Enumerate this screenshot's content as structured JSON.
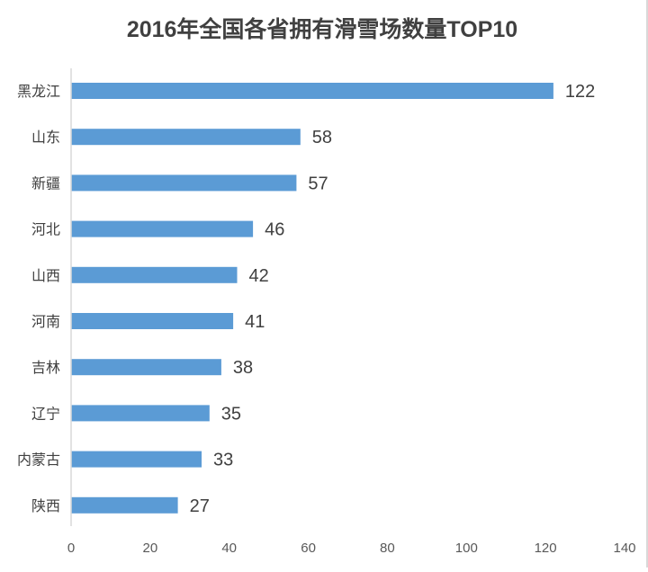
{
  "chart_data": {
    "type": "bar",
    "orientation": "horizontal",
    "title": "2016年全国各省拥有滑雪场数量TOP10",
    "categories": [
      "黑龙江",
      "山东",
      "新疆",
      "河北",
      "山西",
      "河南",
      "吉林",
      "辽宁",
      "内蒙古",
      "陕西"
    ],
    "values": [
      122,
      58,
      57,
      46,
      42,
      41,
      38,
      35,
      33,
      27
    ],
    "xlim": [
      0,
      140
    ],
    "xticks": [
      0,
      20,
      40,
      60,
      80,
      100,
      120,
      140
    ],
    "xlabel": "",
    "ylabel": "",
    "grid": false,
    "legend": "none",
    "data_labels": true,
    "colors": {
      "bar": "#5b9bd5",
      "axis": "#d9d9d9",
      "text": "#404040"
    }
  }
}
